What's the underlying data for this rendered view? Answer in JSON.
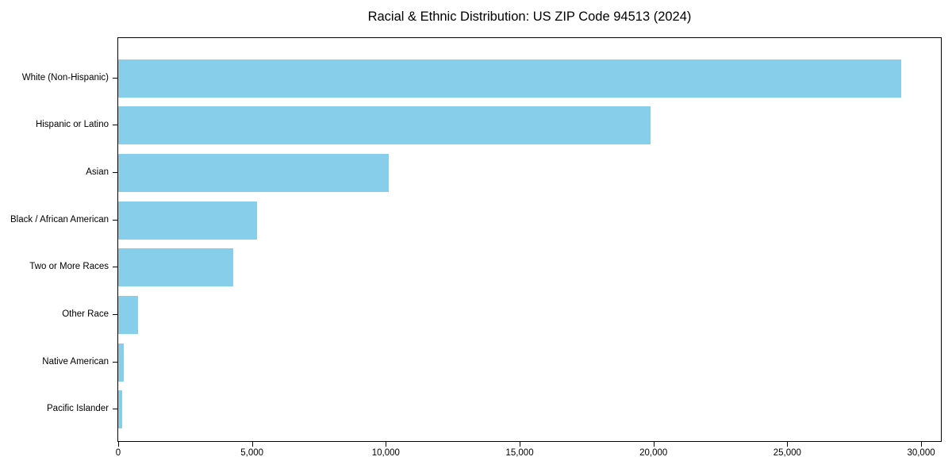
{
  "chart_data": {
    "type": "bar",
    "orientation": "horizontal",
    "title": "Racial & Ethnic Distribution: US ZIP Code 94513 (2024)",
    "categories": [
      "White (Non-Hispanic)",
      "Hispanic or Latino",
      "Asian",
      "Black / African American",
      "Two or More Races",
      "Other Race",
      "Native American",
      "Pacific Islander"
    ],
    "values": [
      29250,
      19900,
      10100,
      5200,
      4300,
      750,
      200,
      150
    ],
    "xlabel": "",
    "ylabel": "",
    "xlim": [
      0,
      30740
    ],
    "x_ticks": [
      0,
      5000,
      10000,
      15000,
      20000,
      25000,
      30000
    ],
    "x_tick_labels": [
      "0",
      "5,000",
      "10,000",
      "15,000",
      "20,000",
      "25,000",
      "30,000"
    ],
    "bar_color": "#87CEEB",
    "background_color": "#FFFFFF",
    "spine_color": "#000000",
    "text_color": "#000000",
    "grid": false,
    "legend": "none"
  }
}
